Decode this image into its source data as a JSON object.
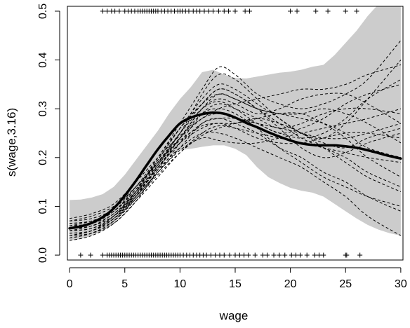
{
  "chart_data": {
    "type": "line",
    "xlabel": "wage",
    "ylabel": "s(wage,3.16)",
    "xlim": [
      -0.2,
      30.2
    ],
    "ylim": [
      -0.01,
      0.51
    ],
    "xticks": [
      "0",
      "5",
      "10",
      "15",
      "20",
      "25",
      "30"
    ],
    "yticks": [
      "0.0",
      "0.1",
      "0.2",
      "0.3",
      "0.4",
      "0.5"
    ],
    "xtick_values": [
      0,
      5,
      10,
      15,
      20,
      25,
      30
    ],
    "ytick_values": [
      0.0,
      0.1,
      0.2,
      0.3,
      0.4,
      0.5
    ],
    "fit": {
      "x": [
        0,
        1,
        2,
        3,
        4,
        5,
        6,
        7,
        8,
        9,
        10,
        11,
        12,
        13,
        14,
        15,
        16,
        17,
        18,
        19,
        20,
        21,
        22,
        23,
        24,
        25,
        26,
        27,
        28,
        29,
        30
      ],
      "y": [
        0.055,
        0.059,
        0.066,
        0.078,
        0.096,
        0.122,
        0.152,
        0.185,
        0.217,
        0.245,
        0.27,
        0.282,
        0.289,
        0.292,
        0.29,
        0.282,
        0.271,
        0.262,
        0.252,
        0.243,
        0.235,
        0.229,
        0.226,
        0.225,
        0.225,
        0.223,
        0.22,
        0.215,
        0.209,
        0.203,
        0.198
      ]
    },
    "confidence_band": {
      "x": [
        0,
        1,
        2,
        3,
        4,
        5,
        6,
        7,
        8,
        9,
        10,
        11,
        12,
        13,
        14,
        15,
        16,
        17,
        18,
        19,
        20,
        21,
        22,
        23,
        24,
        25,
        26,
        27,
        28,
        29,
        30
      ],
      "upper": [
        0.113,
        0.114,
        0.118,
        0.125,
        0.14,
        0.165,
        0.195,
        0.225,
        0.255,
        0.29,
        0.32,
        0.345,
        0.375,
        0.38,
        0.37,
        0.363,
        0.362,
        0.366,
        0.37,
        0.374,
        0.376,
        0.38,
        0.386,
        0.39,
        0.41,
        0.435,
        0.46,
        0.49,
        0.515,
        0.51,
        0.51
      ],
      "lower": [
        0.03,
        0.033,
        0.04,
        0.05,
        0.066,
        0.09,
        0.115,
        0.145,
        0.175,
        0.2,
        0.215,
        0.218,
        0.222,
        0.225,
        0.225,
        0.218,
        0.205,
        0.18,
        0.16,
        0.148,
        0.138,
        0.132,
        0.128,
        0.12,
        0.105,
        0.09,
        0.075,
        0.062,
        0.052,
        0.045,
        0.04
      ]
    },
    "simulated_curves": {
      "x": [
        0,
        2,
        4,
        6,
        8,
        10,
        12,
        13.5,
        15,
        17,
        19,
        21,
        23,
        25,
        27,
        30
      ],
      "series": [
        {
          "y": [
            0.035,
            0.045,
            0.07,
            0.12,
            0.18,
            0.24,
            0.3,
            0.33,
            0.32,
            0.3,
            0.29,
            0.28,
            0.27,
            0.25,
            0.22,
            0.2
          ]
        },
        {
          "y": [
            0.07,
            0.08,
            0.1,
            0.14,
            0.19,
            0.24,
            0.28,
            0.3,
            0.31,
            0.32,
            0.33,
            0.34,
            0.34,
            0.35,
            0.37,
            0.39
          ]
        },
        {
          "y": [
            0.05,
            0.055,
            0.08,
            0.13,
            0.2,
            0.26,
            0.31,
            0.34,
            0.33,
            0.3,
            0.27,
            0.24,
            0.22,
            0.2,
            0.17,
            0.14
          ]
        },
        {
          "y": [
            0.04,
            0.05,
            0.075,
            0.12,
            0.17,
            0.22,
            0.27,
            0.28,
            0.27,
            0.25,
            0.22,
            0.2,
            0.17,
            0.15,
            0.12,
            0.09
          ]
        },
        {
          "y": [
            0.06,
            0.065,
            0.09,
            0.135,
            0.19,
            0.25,
            0.33,
            0.37,
            0.36,
            0.32,
            0.28,
            0.25,
            0.24,
            0.27,
            0.32,
            0.4
          ]
        },
        {
          "y": [
            0.03,
            0.04,
            0.065,
            0.11,
            0.16,
            0.21,
            0.25,
            0.265,
            0.26,
            0.25,
            0.24,
            0.23,
            0.22,
            0.21,
            0.2,
            0.19
          ]
        },
        {
          "y": [
            0.065,
            0.07,
            0.09,
            0.14,
            0.2,
            0.27,
            0.34,
            0.385,
            0.37,
            0.33,
            0.31,
            0.3,
            0.31,
            0.33,
            0.36,
            0.44
          ]
        },
        {
          "y": [
            0.055,
            0.06,
            0.085,
            0.125,
            0.175,
            0.22,
            0.25,
            0.25,
            0.24,
            0.22,
            0.2,
            0.18,
            0.15,
            0.12,
            0.08,
            0.04
          ]
        },
        {
          "y": [
            0.04,
            0.05,
            0.07,
            0.115,
            0.17,
            0.23,
            0.29,
            0.31,
            0.3,
            0.28,
            0.26,
            0.27,
            0.29,
            0.3,
            0.3,
            0.29
          ]
        },
        {
          "y": [
            0.075,
            0.085,
            0.105,
            0.15,
            0.2,
            0.245,
            0.28,
            0.29,
            0.28,
            0.27,
            0.26,
            0.25,
            0.24,
            0.24,
            0.25,
            0.27
          ]
        },
        {
          "y": [
            0.045,
            0.05,
            0.08,
            0.13,
            0.195,
            0.26,
            0.32,
            0.35,
            0.34,
            0.31,
            0.28,
            0.25,
            0.23,
            0.22,
            0.24,
            0.26
          ]
        },
        {
          "y": [
            0.05,
            0.06,
            0.08,
            0.12,
            0.17,
            0.215,
            0.24,
            0.235,
            0.23,
            0.23,
            0.24,
            0.25,
            0.26,
            0.27,
            0.28,
            0.3
          ]
        },
        {
          "y": [
            0.06,
            0.065,
            0.085,
            0.13,
            0.185,
            0.24,
            0.29,
            0.3,
            0.29,
            0.26,
            0.22,
            0.19,
            0.16,
            0.14,
            0.12,
            0.1
          ]
        },
        {
          "y": [
            0.04,
            0.045,
            0.065,
            0.11,
            0.175,
            0.24,
            0.3,
            0.32,
            0.31,
            0.29,
            0.3,
            0.32,
            0.33,
            0.33,
            0.31,
            0.27
          ]
        },
        {
          "y": [
            0.07,
            0.075,
            0.095,
            0.14,
            0.19,
            0.235,
            0.265,
            0.27,
            0.27,
            0.28,
            0.29,
            0.29,
            0.27,
            0.24,
            0.2,
            0.16
          ]
        },
        {
          "y": [
            0.035,
            0.045,
            0.07,
            0.12,
            0.185,
            0.25,
            0.31,
            0.34,
            0.33,
            0.3,
            0.26,
            0.22,
            0.2,
            0.21,
            0.23,
            0.25
          ]
        },
        {
          "y": [
            0.055,
            0.06,
            0.08,
            0.125,
            0.18,
            0.23,
            0.27,
            0.28,
            0.28,
            0.27,
            0.25,
            0.26,
            0.28,
            0.31,
            0.33,
            0.35
          ]
        },
        {
          "y": [
            0.065,
            0.07,
            0.09,
            0.13,
            0.18,
            0.23,
            0.26,
            0.27,
            0.26,
            0.24,
            0.23,
            0.23,
            0.24,
            0.25,
            0.25,
            0.24
          ]
        },
        {
          "y": [
            0.045,
            0.05,
            0.075,
            0.125,
            0.19,
            0.25,
            0.3,
            0.315,
            0.3,
            0.27,
            0.25,
            0.24,
            0.25,
            0.28,
            0.32,
            0.36
          ]
        },
        {
          "y": [
            0.05,
            0.055,
            0.075,
            0.115,
            0.165,
            0.21,
            0.245,
            0.26,
            0.27,
            0.28,
            0.27,
            0.25,
            0.22,
            0.19,
            0.16,
            0.13
          ]
        },
        {
          "y": [
            0.06,
            0.07,
            0.09,
            0.135,
            0.195,
            0.26,
            0.31,
            0.33,
            0.32,
            0.3,
            0.29,
            0.29,
            0.3,
            0.29,
            0.27,
            0.23
          ]
        }
      ]
    },
    "rug_top_x": [
      3,
      3.4,
      3.8,
      4.1,
      4.5,
      5.0,
      5.3,
      5.6,
      5.9,
      6.2,
      6.4,
      6.6,
      6.8,
      7.0,
      7.2,
      7.4,
      7.6,
      7.8,
      8.0,
      8.3,
      8.6,
      8.9,
      9.2,
      9.5,
      9.8,
      10.0,
      10.2,
      10.5,
      10.8,
      11.2,
      11.5,
      11.8,
      12.2,
      12.6,
      13.0,
      13.5,
      14.0,
      14.4,
      15.0,
      15.9,
      16.3,
      20.0,
      20.6,
      22.3,
      23.4,
      25.0,
      26.0
    ],
    "rug_bottom_x": [
      1.0,
      1.9,
      3.0,
      3.4,
      3.6,
      3.8,
      4.0,
      4.2,
      4.4,
      4.6,
      4.8,
      5.0,
      5.2,
      5.4,
      5.6,
      5.8,
      6.0,
      6.2,
      6.4,
      6.6,
      6.8,
      7.0,
      7.2,
      7.4,
      7.6,
      7.8,
      8.0,
      8.2,
      8.4,
      8.6,
      8.8,
      9.0,
      9.2,
      9.4,
      9.6,
      9.8,
      10.0,
      10.3,
      10.6,
      10.9,
      11.2,
      11.5,
      11.8,
      12.1,
      12.4,
      12.8,
      13.2,
      13.6,
      14.0,
      14.5,
      15.0,
      15.4,
      15.8,
      16.2,
      16.8,
      17.5,
      17.9,
      18.5,
      19.0,
      19.5,
      20.1,
      20.5,
      20.9,
      21.5,
      22.2,
      22.6,
      23.0,
      25.0,
      25.1,
      26.3
    ]
  }
}
